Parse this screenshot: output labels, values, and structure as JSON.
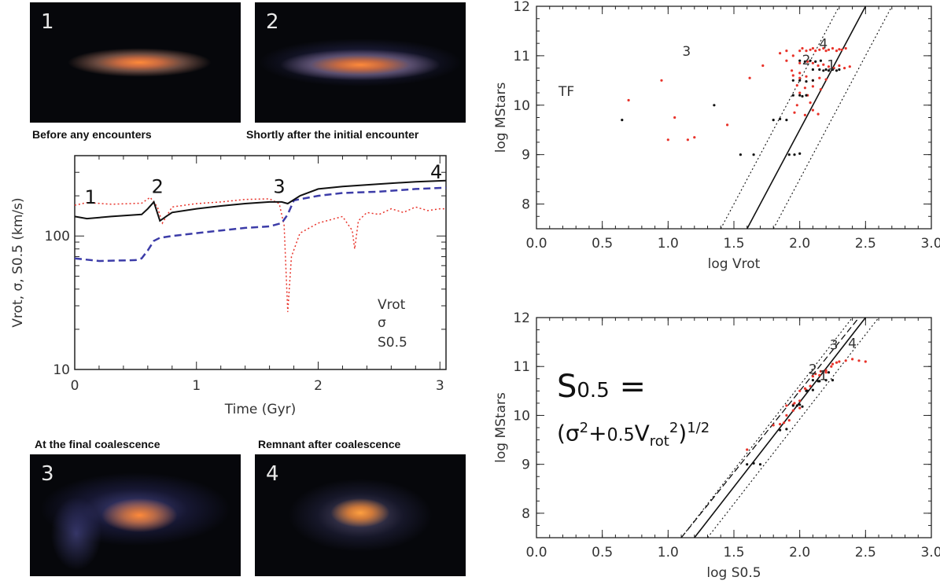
{
  "galaxies": [
    {
      "num": "1",
      "caption": "Before any encounters"
    },
    {
      "num": "2",
      "caption": "Shortly after the initial encounter"
    },
    {
      "num": "3",
      "caption": "At the final coalescence"
    },
    {
      "num": "4",
      "caption": "Remnant after coalescence"
    }
  ],
  "colors": {
    "vrot": "#e8332a",
    "sigma": "#3c3ca8",
    "s05": "#111111",
    "point_blue": "#4848b8"
  },
  "chart_data": [
    {
      "type": "line",
      "ylabel": "Vrot, σ, S0.5 (km/s)",
      "xlabel": "Time (Gyr)",
      "xlim": [
        0,
        3.05
      ],
      "ylim": [
        10,
        400
      ],
      "yscale": "log",
      "xticks": [
        "0",
        "1",
        "2",
        "3"
      ],
      "yticks": [
        "10",
        "100"
      ],
      "markers": [
        {
          "label": "1",
          "x": 0.13,
          "y": 175
        },
        {
          "label": "2",
          "x": 0.68,
          "y": 210
        },
        {
          "label": "3",
          "x": 1.68,
          "y": 210
        },
        {
          "label": "4",
          "x": 2.97,
          "y": 270
        }
      ],
      "legend": {
        "position": "bottom-right",
        "entries": [
          "Vrot",
          "σ",
          "S0.5"
        ]
      },
      "series": [
        {
          "name": "Vrot",
          "style": "dotted",
          "x": [
            0,
            0.1,
            0.3,
            0.55,
            0.62,
            0.68,
            0.72,
            0.8,
            1.0,
            1.2,
            1.4,
            1.6,
            1.68,
            1.72,
            1.75,
            1.78,
            1.85,
            2.0,
            2.2,
            2.28,
            2.3,
            2.33,
            2.4,
            2.5,
            2.6,
            2.7,
            2.8,
            2.9,
            3.0,
            3.05
          ],
          "y": [
            170,
            178,
            173,
            176,
            195,
            165,
            125,
            165,
            175,
            180,
            188,
            190,
            175,
            120,
            27,
            70,
            105,
            125,
            140,
            110,
            80,
            130,
            150,
            145,
            160,
            150,
            165,
            155,
            160,
            160
          ]
        },
        {
          "name": "σ",
          "style": "dashed",
          "x": [
            0,
            0.2,
            0.5,
            0.55,
            0.6,
            0.65,
            0.7,
            0.8,
            1.0,
            1.2,
            1.4,
            1.6,
            1.7,
            1.75,
            1.8,
            2.0,
            2.2,
            2.5,
            2.8,
            3.05
          ],
          "y": [
            68,
            65,
            66,
            68,
            78,
            92,
            97,
            100,
            105,
            110,
            115,
            118,
            125,
            145,
            185,
            200,
            210,
            215,
            225,
            230
          ]
        },
        {
          "name": "S0.5",
          "style": "solid",
          "x": [
            0,
            0.1,
            0.3,
            0.55,
            0.6,
            0.65,
            0.7,
            0.75,
            0.8,
            1.0,
            1.2,
            1.4,
            1.6,
            1.7,
            1.75,
            1.85,
            2.0,
            2.2,
            2.5,
            2.8,
            3.05
          ],
          "y": [
            140,
            135,
            140,
            145,
            160,
            180,
            130,
            140,
            150,
            160,
            168,
            175,
            180,
            180,
            175,
            200,
            225,
            235,
            245,
            255,
            260
          ]
        }
      ]
    },
    {
      "type": "scatter",
      "title": "TF",
      "xlabel": "log Vrot",
      "ylabel": "log MStars",
      "xlim": [
        0,
        3
      ],
      "ylim": [
        7.5,
        12
      ],
      "xticks": [
        "0.0",
        "0.5",
        "1.0",
        "1.5",
        "2.0",
        "2.5",
        "3.0"
      ],
      "yticks": [
        "8",
        "9",
        "10",
        "11",
        "12"
      ],
      "lines": {
        "solid": {
          "x": [
            1.6,
            2.5
          ],
          "y": [
            7.5,
            12
          ]
        },
        "dotted_left": {
          "x": [
            1.4,
            2.3
          ],
          "y": [
            7.5,
            12
          ]
        },
        "dotted_right": {
          "x": [
            1.8,
            2.7
          ],
          "y": [
            7.5,
            12
          ]
        }
      },
      "labels": [
        {
          "text": "3",
          "x": 1.14,
          "y": 11.0
        },
        {
          "text": "4",
          "x": 2.18,
          "y": 11.15
        },
        {
          "text": "2",
          "x": 2.05,
          "y": 10.82
        },
        {
          "text": "1",
          "x": 2.24,
          "y": 10.72
        }
      ],
      "series": [
        {
          "name": "red",
          "x": [
            0.7,
            0.95,
            1.0,
            1.05,
            1.15,
            1.2,
            1.45,
            1.62,
            1.72,
            1.85,
            1.9,
            1.95,
            2.0,
            2.02,
            2.05,
            2.08,
            2.1,
            2.12,
            2.15,
            2.18,
            2.2,
            2.22,
            2.25,
            2.28,
            2.3,
            2.32,
            2.35,
            1.9,
            2.0,
            2.06,
            2.1,
            2.14,
            2.18,
            2.22,
            2.26,
            2.3,
            2.34,
            2.38,
            1.95,
            2.0,
            2.05,
            2.1,
            2.15,
            2.2,
            1.98,
            2.04,
            2.1,
            2.16,
            2.0,
            2.06,
            1.98,
            2.08,
            1.96,
            2.04,
            2.1,
            2.14,
            1.94,
            2.0
          ],
          "y": [
            10.1,
            10.5,
            9.3,
            9.75,
            9.3,
            9.35,
            9.6,
            10.55,
            10.8,
            11.05,
            11.1,
            11.0,
            11.1,
            11.15,
            11.1,
            11.12,
            11.15,
            11.1,
            11.12,
            11.15,
            11.1,
            11.12,
            11.15,
            11.1,
            11.13,
            11.12,
            11.15,
            10.9,
            10.85,
            10.88,
            10.85,
            10.8,
            10.82,
            10.78,
            10.75,
            10.8,
            10.75,
            10.78,
            10.6,
            10.55,
            10.58,
            10.5,
            10.55,
            10.52,
            10.4,
            10.35,
            10.38,
            10.32,
            10.25,
            10.2,
            10.0,
            10.05,
            9.85,
            9.8,
            9.9,
            9.82,
            10.7,
            10.65
          ]
        },
        {
          "name": "black",
          "x": [
            0.65,
            1.35,
            1.55,
            1.65,
            1.8,
            1.85,
            1.9,
            1.95,
            2.0,
            2.02,
            2.05,
            2.1,
            2.15,
            2.18,
            2.2,
            2.22,
            2.25,
            2.28,
            2.3,
            2.0,
            2.04,
            2.08,
            2.12,
            2.16,
            1.95,
            2.0,
            2.05,
            2.1,
            1.92,
            1.96,
            2.0
          ],
          "y": [
            9.7,
            10.0,
            9.0,
            9.0,
            9.7,
            9.72,
            9.7,
            10.2,
            10.2,
            10.18,
            10.2,
            10.72,
            10.72,
            10.7,
            10.72,
            10.7,
            10.72,
            10.7,
            10.72,
            10.9,
            10.88,
            10.9,
            10.88,
            10.9,
            10.5,
            10.5,
            10.48,
            10.5,
            9.0,
            9.0,
            9.02
          ]
        }
      ]
    },
    {
      "type": "scatter",
      "xlabel": "log S0.5",
      "ylabel": "log MStars",
      "xlim": [
        0,
        3
      ],
      "ylim": [
        7.5,
        12
      ],
      "xticks": [
        "0.0",
        "0.5",
        "1.0",
        "1.5",
        "2.0",
        "2.5",
        "3.0"
      ],
      "yticks": [
        "8",
        "9",
        "10",
        "11",
        "12"
      ],
      "lines": {
        "solid": {
          "x": [
            1.2,
            2.5
          ],
          "y": [
            7.5,
            12
          ]
        },
        "dashed": {
          "x": [
            1.1,
            2.45
          ],
          "y": [
            7.5,
            12
          ]
        },
        "dotted_left": {
          "x": [
            1.1,
            2.4
          ],
          "y": [
            7.5,
            12
          ]
        },
        "dotted_right": {
          "x": [
            1.3,
            2.6
          ],
          "y": [
            7.5,
            12
          ]
        }
      },
      "labels": [
        {
          "text": "3",
          "x": 2.26,
          "y": 11.35
        },
        {
          "text": "4",
          "x": 2.4,
          "y": 11.38
        },
        {
          "text": "2",
          "x": 2.1,
          "y": 10.85
        },
        {
          "text": "1",
          "x": 2.18,
          "y": 10.72
        }
      ],
      "series": [
        {
          "name": "red",
          "x": [
            1.6,
            1.8,
            1.85,
            1.9,
            1.95,
            2.0,
            2.05,
            2.1,
            2.15,
            2.2,
            2.25,
            2.3,
            2.35,
            2.4,
            2.45,
            2.5,
            1.88,
            1.92,
            1.96,
            2.0,
            2.04,
            2.08,
            2.12,
            2.16,
            2.2,
            2.24,
            2.28,
            1.9,
            1.95,
            2.0
          ],
          "y": [
            9.3,
            9.8,
            9.82,
            10.2,
            10.22,
            10.5,
            10.52,
            10.8,
            10.82,
            10.88,
            11.05,
            11.1,
            11.12,
            11.15,
            11.12,
            11.1,
            9.85,
            9.9,
            10.25,
            10.3,
            10.55,
            10.6,
            10.85,
            10.9,
            10.92,
            11.0,
            11.08,
            10.0,
            10.1,
            10.15
          ]
        },
        {
          "name": "black",
          "x": [
            1.6,
            1.65,
            1.7,
            1.85,
            1.9,
            1.95,
            2.0,
            2.05,
            2.1,
            2.15,
            2.2,
            2.25,
            1.98,
            2.02,
            2.06,
            2.1,
            2.14,
            2.18,
            2.22
          ],
          "y": [
            9.0,
            9.02,
            9.0,
            9.7,
            9.72,
            10.2,
            10.22,
            10.5,
            10.72,
            10.7,
            10.72,
            10.72,
            10.2,
            10.18,
            10.5,
            10.52,
            10.7,
            10.9,
            10.88
          ]
        }
      ]
    }
  ],
  "formula": {
    "lhs_s": "S",
    "lhs_sub": "0.5",
    "eq": " =",
    "rhs_open": "(σ",
    "rhs_sup1": "2",
    "rhs_plus": "+",
    "rhs_coef": "0.5",
    "rhs_v": "V",
    "rhs_vsub": "rot",
    "rhs_sup2": "2",
    "rhs_close": ")",
    "rhs_sup3": "1/2"
  }
}
